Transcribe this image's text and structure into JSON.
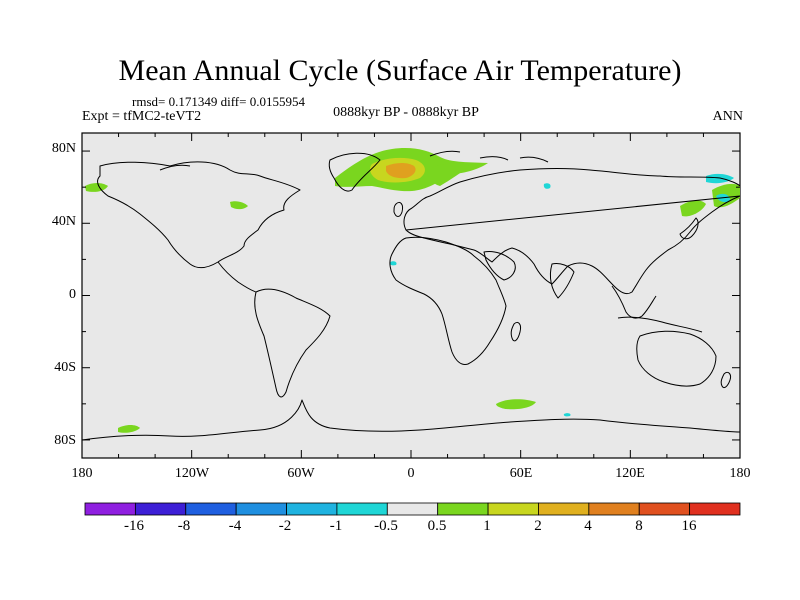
{
  "header": {
    "title": "Mean Annual Cycle (Surface Air Temperature)",
    "stats": "rmsd= 0.171349  diff= 0.0155954",
    "experiment": "Expt = tfMC2-teVT2",
    "period": "0888kyr BP - 0888kyr BP",
    "season": "ANN"
  },
  "axes": {
    "y_labels": [
      "80N",
      "40N",
      "0",
      "40S",
      "80S"
    ],
    "x_labels": [
      "180",
      "120W",
      "60W",
      "0",
      "60E",
      "120E",
      "180"
    ]
  },
  "colorbar": {
    "labels": [
      "-16",
      "-8",
      "-4",
      "-2",
      "-1",
      "-0.5",
      "0.5",
      "1",
      "2",
      "4",
      "8",
      "16"
    ],
    "colors": [
      "#8f1fe0",
      "#3d1fd6",
      "#1f5fe0",
      "#1f8fe0",
      "#1fb3e0",
      "#1fd6d6",
      "#e8e8e8",
      "#7ad61f",
      "#c8d61f",
      "#e0b01f",
      "#e0801f",
      "#e0501f",
      "#e0301f"
    ]
  },
  "map_colors": {
    "background": "#e8e8e8",
    "coast": "#000000",
    "positive_weak": "#7ad61f",
    "positive_mid": "#c8d61f",
    "positive_strong": "#e0a01f",
    "negative_weak": "#1fd6d6"
  }
}
